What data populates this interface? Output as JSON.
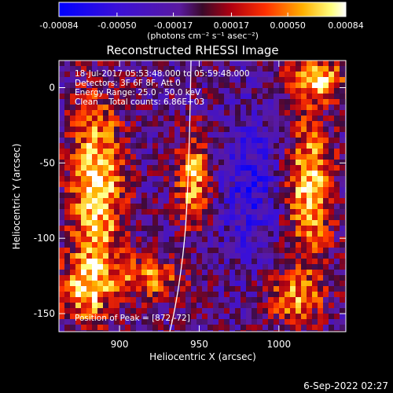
{
  "colorbar": {
    "ticks": [
      "-0.00084",
      "-0.00050",
      "-0.00017",
      "0.00017",
      "0.00050",
      "0.00084"
    ],
    "tick_values": [
      -0.00084,
      -0.0005,
      -0.00017,
      0.00017,
      0.0005,
      0.00084
    ],
    "range": [
      -0.00084,
      0.00084
    ],
    "units_label": "(photons cm⁻² s⁻¹ asec⁻²)",
    "colormap": "blue-purple-red-yellow-white (RHESSI)"
  },
  "chart_data": {
    "type": "heatmap",
    "title": "Reconstructed RHESSI Image",
    "xlabel": "Heliocentric X (arcsec)",
    "ylabel": "Heliocentric Y (arcsec)",
    "xlim": [
      862,
      1042
    ],
    "ylim": [
      -162,
      18
    ],
    "xticks": [
      900,
      950,
      1000
    ],
    "yticks": [
      0,
      -50,
      -100,
      -150
    ],
    "annotations": {
      "time_range": "18-Jul-2017 05:53:48.000 to 05:59:48.000",
      "detectors": "Detectors: 3F 6F 8F, Att 0",
      "energy": "Energy Range: 25.0 - 50.0 keV",
      "clean": "Clean    Total counts: 6.86E+03",
      "peak": "Position of Peak = [872,-72]"
    },
    "peak_position": [
      872,
      -72
    ],
    "total_counts": 6860,
    "limb_line": true
  },
  "footer": {
    "date": "6-Sep-2022 02:27"
  }
}
